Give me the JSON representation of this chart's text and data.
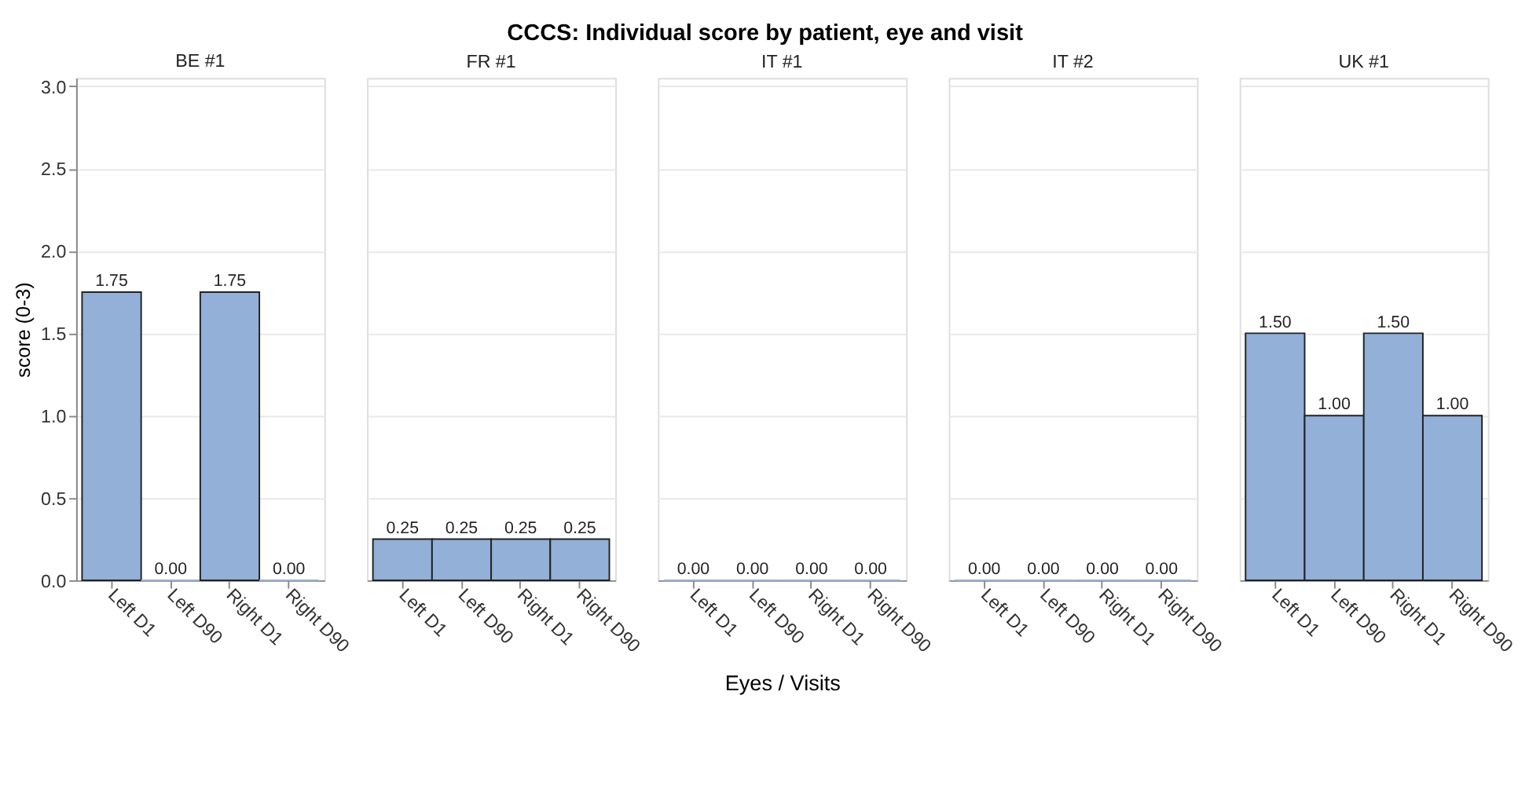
{
  "chart_data": [
    {
      "type": "bar",
      "subtitle": "BE #1",
      "ylabel": "score (0-3)",
      "categories": [
        "Left D1",
        "Left D90",
        "Right D1",
        "Right D90"
      ],
      "values": [
        1.75,
        0,
        1.75,
        0
      ],
      "value_labels": [
        "1.75",
        "0.00",
        "1.75",
        "0.00"
      ],
      "color": "#92b0d8",
      "ylim": [
        0,
        3.05
      ],
      "yticks": [
        {
          "value": 0,
          "label": "0.0"
        },
        {
          "value": 0.5,
          "label": "0.5"
        },
        {
          "value": 1,
          "label": "1.0"
        },
        {
          "value": 1.5,
          "label": "1.5"
        },
        {
          "value": 2,
          "label": "2.0"
        },
        {
          "value": 2.5,
          "label": "2.5"
        },
        {
          "value": 3,
          "label": "3.0"
        }
      ],
      "grid": "y"
    },
    {
      "type": "bar",
      "subtitle": "FR #1",
      "categories": [
        "Left D1",
        "Left D90",
        "Right D1",
        "Right D90"
      ],
      "values": [
        0.25,
        0.25,
        0.25,
        0.25
      ],
      "value_labels": [
        "0.25",
        "0.25",
        "0.25",
        "0.25"
      ],
      "color": "#92b0d8",
      "ylim": [
        0,
        3.05
      ],
      "grid": "y",
      "tick_labels": "x"
    },
    {
      "type": "bar",
      "title": "CCCS: Individual score by patient, eye and visit",
      "subtitle": "IT #1",
      "xlabel": "Eyes / Visits",
      "categories": [
        "Left D1",
        "Left D90",
        "Right D1",
        "Right D90"
      ],
      "values": [
        0,
        0,
        0,
        0
      ],
      "value_labels": [
        "0.00",
        "0.00",
        "0.00",
        "0.00"
      ],
      "color": "#92b0d8",
      "ylim": [
        0,
        3.05
      ],
      "grid": "y",
      "tick_labels": "x"
    },
    {
      "type": "bar",
      "subtitle": "IT #2",
      "categories": [
        "Left D1",
        "Left D90",
        "Right D1",
        "Right D90"
      ],
      "values": [
        0,
        0,
        0,
        0
      ],
      "value_labels": [
        "0.00",
        "0.00",
        "0.00",
        "0.00"
      ],
      "color": "#92b0d8",
      "ylim": [
        0,
        3.05
      ],
      "grid": "y",
      "tick_labels": "x"
    },
    {
      "type": "bar",
      "subtitle": "UK #1",
      "categories": [
        "Left D1",
        "Left D90",
        "Right D1",
        "Right D90"
      ],
      "values": [
        1.5,
        1,
        1.5,
        1
      ],
      "value_labels": [
        "1.50",
        "1.00",
        "1.50",
        "1.00"
      ],
      "color": "#92b0d8",
      "ylim": [
        0,
        3.05
      ],
      "grid": "y",
      "tick_labels": "x"
    }
  ]
}
